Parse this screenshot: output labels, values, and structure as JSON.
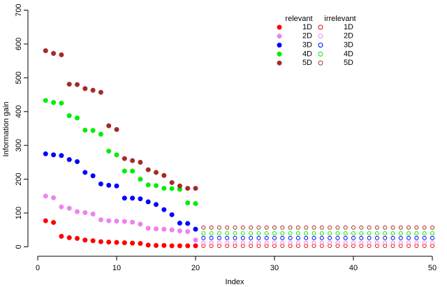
{
  "chart_data": {
    "type": "scatter",
    "x_label": "Index",
    "y_label": "Information gain",
    "xlim": [
      -1.24,
      51.24
    ],
    "ylim": [
      -28,
      728
    ],
    "xticks": [
      0,
      10,
      20,
      30,
      40,
      50
    ],
    "yticks": [
      0,
      100,
      200,
      300,
      400,
      500,
      600,
      700
    ],
    "legend": {
      "position": "top-right",
      "headers": [
        "relevant",
        "irrelevant"
      ]
    },
    "series": [
      {
        "name": "1D",
        "group": "relevant",
        "color": "#ff0000",
        "filled": true,
        "x": [
          1,
          2,
          3,
          4,
          5,
          6,
          7,
          8,
          9,
          10,
          11,
          12,
          13,
          14,
          15,
          16,
          17,
          18,
          19,
          20
        ],
        "values": [
          77,
          72,
          31,
          27,
          25,
          20,
          18,
          15,
          14,
          13,
          12,
          11,
          10,
          5,
          4,
          4,
          3,
          3,
          3,
          3
        ]
      },
      {
        "name": "2D",
        "group": "relevant",
        "color": "#ee82ee",
        "filled": true,
        "x": [
          1,
          2,
          3,
          4,
          5,
          6,
          7,
          8,
          9,
          10,
          11,
          12,
          13,
          14,
          15,
          16,
          17,
          18,
          19,
          20
        ],
        "values": [
          150,
          145,
          118,
          114,
          104,
          101,
          97,
          80,
          77,
          76,
          75,
          73,
          67,
          55,
          53,
          52,
          50,
          47,
          45,
          20
        ]
      },
      {
        "name": "3D",
        "group": "relevant",
        "color": "#0000ff",
        "filled": true,
        "x": [
          1,
          2,
          3,
          4,
          5,
          6,
          7,
          8,
          9,
          10,
          11,
          12,
          13,
          14,
          15,
          16,
          17,
          18,
          19,
          20
        ],
        "values": [
          275,
          272,
          270,
          258,
          252,
          220,
          210,
          186,
          182,
          180,
          144,
          144,
          142,
          133,
          125,
          110,
          95,
          70,
          69,
          52
        ]
      },
      {
        "name": "4D",
        "group": "relevant",
        "color": "#00ee00",
        "filled": true,
        "x": [
          1,
          2,
          3,
          4,
          5,
          6,
          7,
          8,
          9,
          10,
          11,
          12,
          13,
          14,
          15,
          16,
          17,
          18,
          19,
          20
        ],
        "values": [
          433,
          427,
          425,
          388,
          381,
          345,
          344,
          333,
          283,
          272,
          224,
          224,
          200,
          183,
          181,
          173,
          172,
          170,
          130,
          128
        ]
      },
      {
        "name": "5D",
        "group": "relevant",
        "color": "#a52a2a",
        "filled": true,
        "x": [
          1,
          2,
          3,
          4,
          5,
          6,
          7,
          8,
          9,
          10,
          11,
          12,
          13,
          14,
          15,
          16,
          17,
          18,
          19,
          20
        ],
        "values": [
          580,
          572,
          568,
          481,
          480,
          468,
          463,
          457,
          358,
          347,
          261,
          255,
          250,
          228,
          220,
          211,
          190,
          180,
          173,
          173
        ]
      },
      {
        "name": "1D",
        "group": "irrelevant",
        "color": "#ff0000",
        "filled": false,
        "x": [
          21,
          22,
          23,
          24,
          25,
          26,
          27,
          28,
          29,
          30,
          31,
          32,
          33,
          34,
          35,
          36,
          37,
          38,
          39,
          40,
          41,
          42,
          43,
          44,
          45,
          46,
          47,
          48,
          49,
          50
        ],
        "values": [
          3,
          3,
          3,
          3,
          3,
          3,
          3,
          3,
          3,
          3,
          3,
          3,
          3,
          3,
          3,
          3,
          3,
          3,
          3,
          3,
          3,
          3,
          3,
          3,
          3,
          3,
          3,
          3,
          3,
          3
        ]
      },
      {
        "name": "2D",
        "group": "irrelevant",
        "color": "#ee82ee",
        "filled": false,
        "x": [
          21,
          22,
          23,
          24,
          25,
          26,
          27,
          28,
          29,
          30,
          31,
          32,
          33,
          34,
          35,
          36,
          37,
          38,
          39,
          40,
          41,
          42,
          43,
          44,
          45,
          46,
          47,
          48,
          49,
          50
        ],
        "values": [
          12,
          12,
          12,
          12,
          12,
          12,
          12,
          12,
          12,
          12,
          12,
          12,
          12,
          12,
          12,
          12,
          12,
          12,
          12,
          12,
          12,
          12,
          12,
          12,
          12,
          12,
          12,
          12,
          12,
          12
        ]
      },
      {
        "name": "3D",
        "group": "irrelevant",
        "color": "#0000ff",
        "filled": false,
        "x": [
          21,
          22,
          23,
          24,
          25,
          26,
          27,
          28,
          29,
          30,
          31,
          32,
          33,
          34,
          35,
          36,
          37,
          38,
          39,
          40,
          41,
          42,
          43,
          44,
          45,
          46,
          47,
          48,
          49,
          50
        ],
        "values": [
          26,
          26,
          26,
          26,
          26,
          26,
          26,
          26,
          26,
          26,
          26,
          26,
          26,
          26,
          26,
          26,
          26,
          26,
          26,
          26,
          26,
          26,
          26,
          26,
          26,
          26,
          26,
          26,
          26,
          26
        ]
      },
      {
        "name": "4D",
        "group": "irrelevant",
        "color": "#00ee00",
        "filled": false,
        "x": [
          21,
          22,
          23,
          24,
          25,
          26,
          27,
          28,
          29,
          30,
          31,
          32,
          33,
          34,
          35,
          36,
          37,
          38,
          39,
          40,
          41,
          42,
          43,
          44,
          45,
          46,
          47,
          48,
          49,
          50
        ],
        "values": [
          40,
          40,
          40,
          40,
          40,
          40,
          40,
          40,
          40,
          40,
          40,
          40,
          40,
          40,
          40,
          40,
          40,
          40,
          40,
          40,
          40,
          40,
          40,
          40,
          40,
          40,
          40,
          40,
          40,
          40
        ]
      },
      {
        "name": "5D",
        "group": "irrelevant",
        "color": "#a52a2a",
        "filled": false,
        "x": [
          21,
          22,
          23,
          24,
          25,
          26,
          27,
          28,
          29,
          30,
          31,
          32,
          33,
          34,
          35,
          36,
          37,
          38,
          39,
          40,
          41,
          42,
          43,
          44,
          45,
          46,
          47,
          48,
          49,
          50
        ],
        "values": [
          57,
          57,
          57,
          57,
          57,
          57,
          57,
          57,
          57,
          57,
          57,
          57,
          57,
          57,
          57,
          57,
          57,
          57,
          57,
          57,
          57,
          57,
          57,
          57,
          57,
          57,
          57,
          57,
          57,
          57
        ]
      }
    ]
  }
}
